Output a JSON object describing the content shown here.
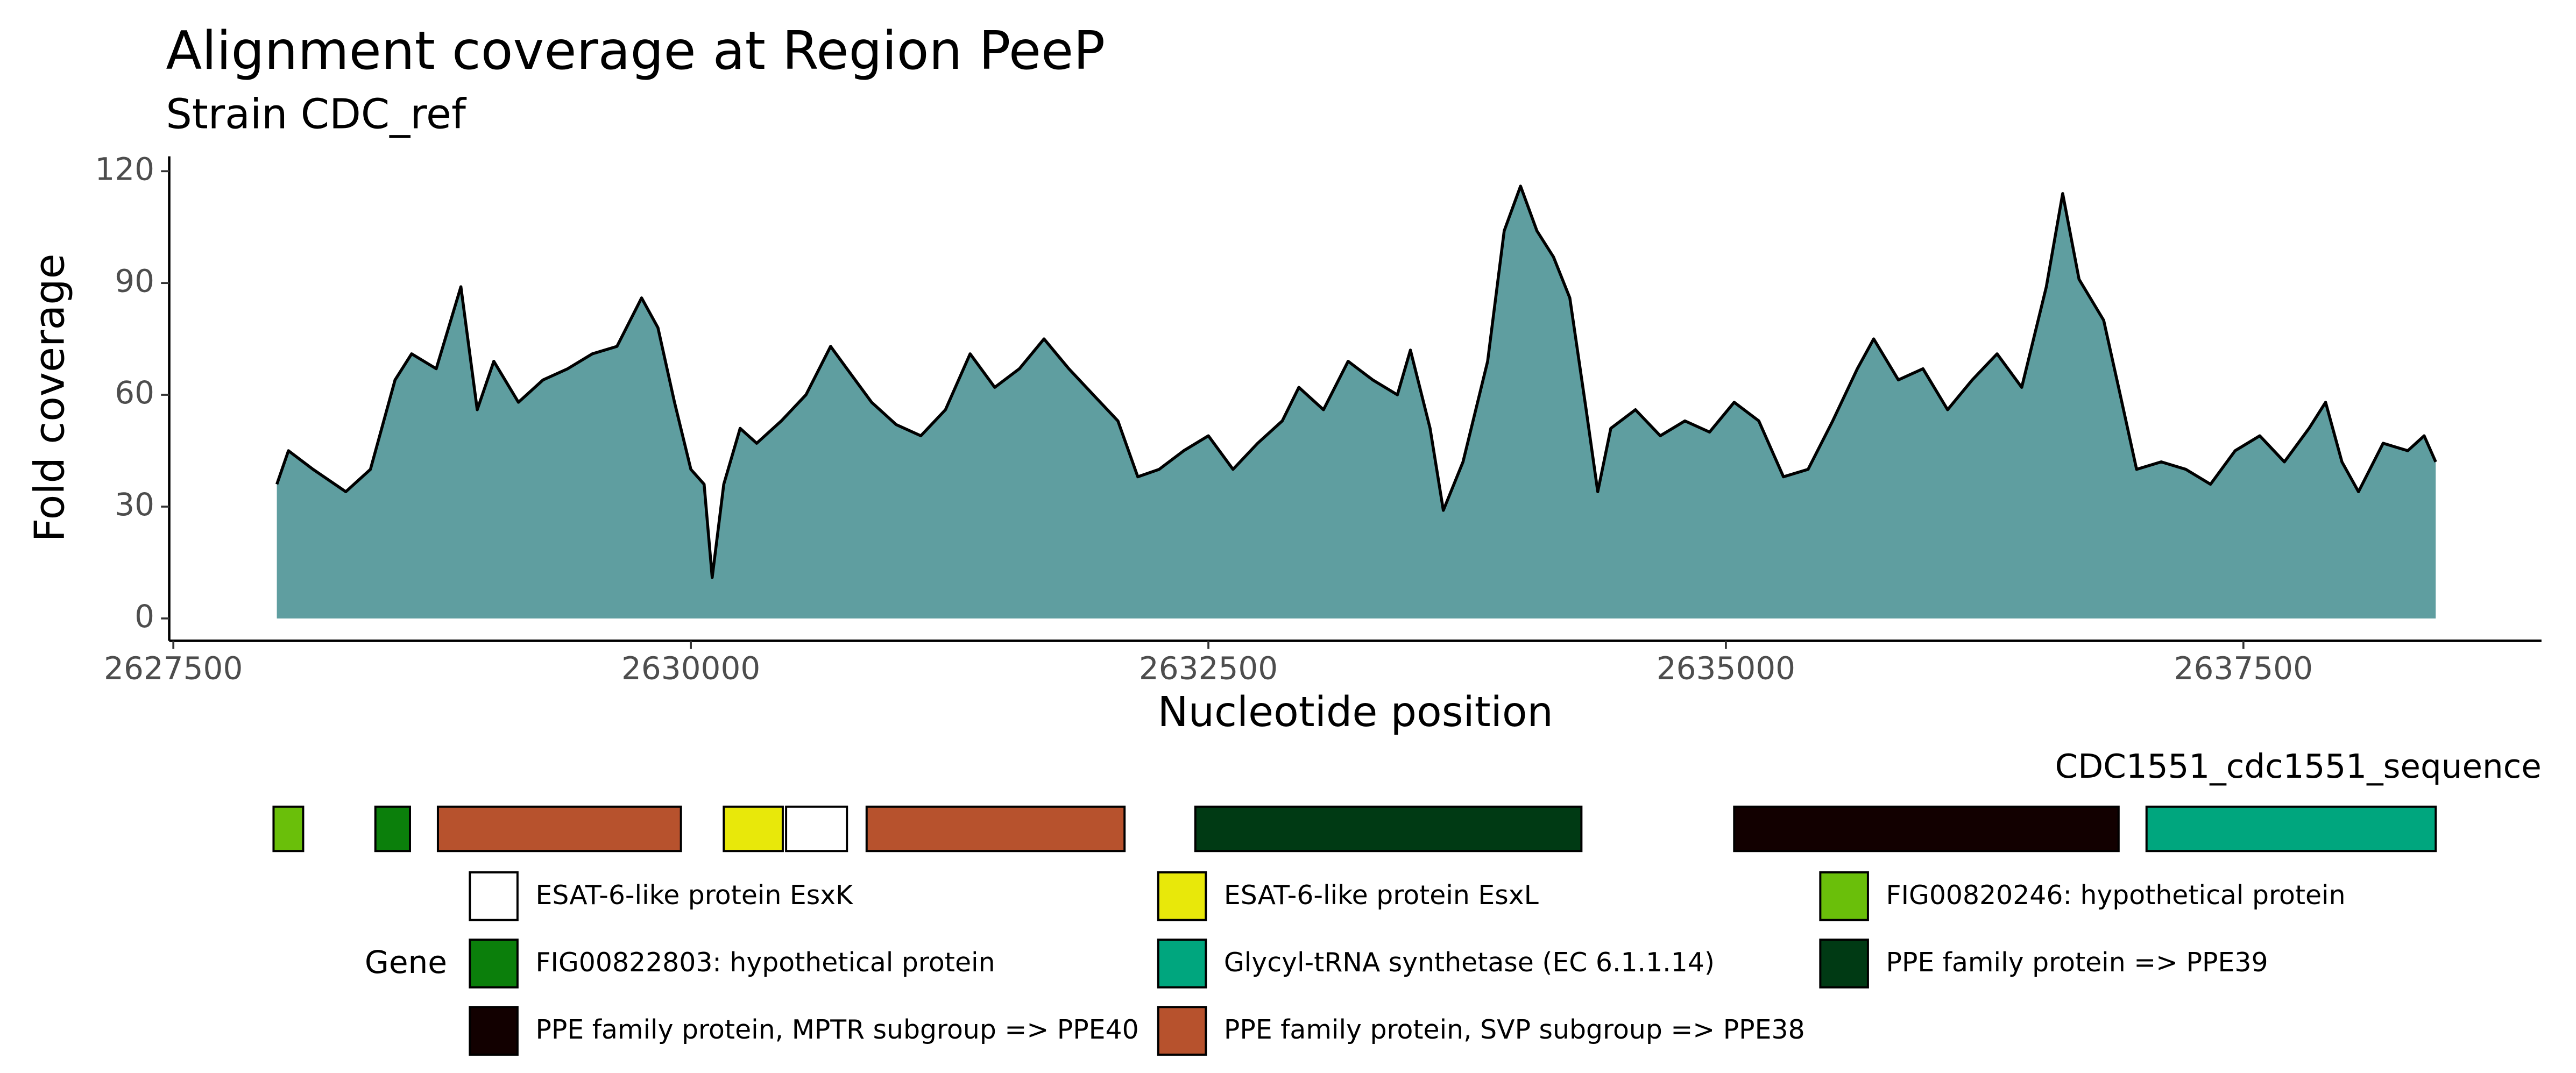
{
  "chart_data": {
    "type": "area",
    "title": "Alignment coverage at Region PeeP",
    "subtitle": "Strain CDC_ref",
    "x_label": "Nucleotide position",
    "y_label": "Fold coverage",
    "xlim": [
      2627480,
      2638940
    ],
    "ylim": [
      -6,
      124
    ],
    "xticks": [
      2627500,
      2630000,
      2632500,
      2635000,
      2637500
    ],
    "yticks": [
      0,
      30,
      60,
      90,
      120
    ],
    "series": [
      {
        "name": "coverage",
        "color": "#5f9ea0",
        "line_color": "#000000",
        "x": [
          2628000,
          2628056,
          2628175,
          2628333,
          2628452,
          2628571,
          2628651,
          2628770,
          2628889,
          2628968,
          2629048,
          2629167,
          2629286,
          2629405,
          2629524,
          2629643,
          2629762,
          2629841,
          2629921,
          2630000,
          2630064,
          2630103,
          2630159,
          2630238,
          2630318,
          2630437,
          2630556,
          2630675,
          2630754,
          2630873,
          2630992,
          2631111,
          2631230,
          2631349,
          2631468,
          2631587,
          2631706,
          2631826,
          2631944,
          2632063,
          2632159,
          2632262,
          2632381,
          2632500,
          2632619,
          2632738,
          2632857,
          2632937,
          2633056,
          2633175,
          2633294,
          2633413,
          2633476,
          2633571,
          2633635,
          2633730,
          2633849,
          2633929,
          2634008,
          2634087,
          2634167,
          2634246,
          2634325,
          2634381,
          2634444,
          2634563,
          2634683,
          2634802,
          2634921,
          2635040,
          2635159,
          2635278,
          2635397,
          2635516,
          2635635,
          2635714,
          2635833,
          2635952,
          2636071,
          2636190,
          2636310,
          2636429,
          2636548,
          2636627,
          2636706,
          2636825,
          2636905,
          2636984,
          2637103,
          2637222,
          2637341,
          2637460,
          2637579,
          2637698,
          2637817,
          2637897,
          2637976,
          2638056,
          2638175,
          2638294,
          2638373,
          2638429
        ],
        "values": [
          36,
          45,
          40,
          34,
          40,
          64,
          71,
          67,
          89,
          56,
          69,
          58,
          64,
          67,
          71,
          73,
          86,
          78,
          58,
          40,
          36,
          11,
          36,
          51,
          47,
          53,
          60,
          73,
          67,
          58,
          52,
          49,
          56,
          71,
          62,
          67,
          75,
          67,
          60,
          53,
          38,
          40,
          45,
          49,
          40,
          47,
          53,
          62,
          56,
          69,
          64,
          60,
          72,
          51,
          29,
          42,
          69,
          104,
          116,
          104,
          97,
          86,
          56,
          34,
          51,
          56,
          49,
          53,
          50,
          58,
          53,
          38,
          40,
          53,
          67,
          75,
          64,
          67,
          56,
          64,
          71,
          62,
          89,
          114,
          91,
          80,
          60,
          40,
          42,
          40,
          36,
          45,
          49,
          42,
          51,
          58,
          42,
          34,
          47,
          45,
          49,
          42
        ]
      }
    ],
    "gene_track": {
      "title": "CDC1551_cdc1551_sequence",
      "legend_title": "Gene",
      "legend": [
        {
          "name": "ESAT-6-like protein EsxK",
          "color": "#ffffff"
        },
        {
          "name": "ESAT-6-like protein EsxL",
          "color": "#e8e80a"
        },
        {
          "name": "FIG00820246: hypothetical protein",
          "color": "#6abf0a"
        },
        {
          "name": "FIG00822803: hypothetical protein",
          "color": "#0b7f0b"
        },
        {
          "name": "Glycyl-tRNA synthetase (EC 6.1.1.14)",
          "color": "#00a67e"
        },
        {
          "name": "PPE family protein => PPE39",
          "color": "#003a14"
        },
        {
          "name": "PPE family protein, MPTR subgroup => PPE40",
          "color": "#120000"
        },
        {
          "name": "PPE family protein, SVP subgroup => PPE38",
          "color": "#b7522d"
        }
      ],
      "features": [
        {
          "start": 2627984,
          "end": 2628127,
          "gene": "FIG00820246: hypothetical protein"
        },
        {
          "start": 2628476,
          "end": 2628643,
          "gene": "FIG00822803: hypothetical protein"
        },
        {
          "start": 2628778,
          "end": 2629952,
          "gene": "PPE family protein, SVP subgroup => PPE38"
        },
        {
          "start": 2630159,
          "end": 2630444,
          "gene": "ESAT-6-like protein EsxL"
        },
        {
          "start": 2630460,
          "end": 2630754,
          "gene": "ESAT-6-like protein EsxK"
        },
        {
          "start": 2630849,
          "end": 2632095,
          "gene": "PPE family protein, SVP subgroup => PPE38"
        },
        {
          "start": 2632437,
          "end": 2634302,
          "gene": "PPE family protein => PPE39"
        },
        {
          "start": 2635040,
          "end": 2636897,
          "gene": "PPE family protein, MPTR subgroup => PPE40"
        },
        {
          "start": 2637032,
          "end": 2638429,
          "gene": "Glycyl-tRNA synthetase (EC 6.1.1.14)"
        }
      ]
    }
  }
}
